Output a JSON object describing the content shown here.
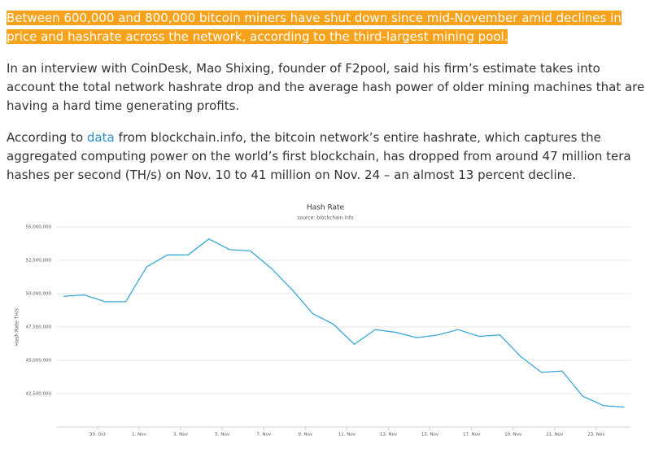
{
  "article": {
    "paragraphs": [
      {
        "text": "Between 600,000 and 800,000 bitcoin miners have shut down since mid-November amid declines in price and hashrate across the network, according to the third-largest mining pool."
      },
      {
        "text": "In an interview with CoinDesk, Mao Shixing, founder of F2pool, said his firm’s estimate takes into account the total network hashrate drop and the average hash power of older mining machines that are having a hard time generating profits."
      },
      {
        "parts": [
          "According to ",
          "data",
          " from blockchain.info, the bitcoin network’s entire hashrate, which captures the aggregated computing power on the world’s first blockchain, has dropped from around 47 million tera hashes per second (TH/s) on Nov. 10 to 41 million on Nov. 24 – an almost 13 percent decline."
        ]
      }
    ]
  },
  "chart_data": {
    "type": "line",
    "title": "Hash Rate",
    "subtitle": "source: blockchain.info",
    "y_label": "Hash Rate TH/s",
    "x": [
      "28. Oct",
      "29. Oct",
      "30. Oct",
      "31. Oct",
      "1. Nov",
      "2. Nov",
      "3. Nov",
      "4. Nov",
      "5. Nov",
      "6. Nov",
      "7. Nov",
      "8. Nov",
      "9. Nov",
      "10. Nov",
      "11. Nov",
      "12. Nov",
      "13. Nov",
      "14. Nov",
      "15. Nov",
      "16. Nov",
      "17. Nov",
      "18. Nov",
      "19. Nov",
      "20. Nov",
      "21. Nov",
      "22. Nov",
      "23. Nov",
      "24. Nov"
    ],
    "series": [
      {
        "name": "Hash Rate",
        "color": "#3aa7d8",
        "values": [
          49800000,
          49900000,
          49400000,
          49400000,
          52000000,
          52900000,
          52900000,
          54100000,
          53300000,
          53200000,
          51900000,
          50300000,
          48500000,
          47700000,
          46200000,
          47300000,
          47100000,
          46700000,
          46900000,
          47300000,
          46800000,
          46900000,
          45300000,
          44100000,
          44200000,
          42300000,
          41600000,
          41500000
        ]
      }
    ],
    "xticks": [
      "30. Oct",
      "1. Nov",
      "3. Nov",
      "5. Nov",
      "7. Nov",
      "9. Nov",
      "11. Nov",
      "13. Nov",
      "15. Nov",
      "17. Nov",
      "19. Nov",
      "21. Nov",
      "23. Nov"
    ],
    "ylim": [
      40000000,
      55000000
    ],
    "yticks": [
      {
        "value": 42500000,
        "label": "42,500,000"
      },
      {
        "value": 45000000,
        "label": "45,000,000"
      },
      {
        "value": 47500000,
        "label": "47,500,000"
      },
      {
        "value": 50000000,
        "label": "50,000,000"
      },
      {
        "value": 52500000,
        "label": "52,500,000"
      },
      {
        "value": 55000000,
        "label": "55,000,000"
      }
    ],
    "grid": true
  }
}
